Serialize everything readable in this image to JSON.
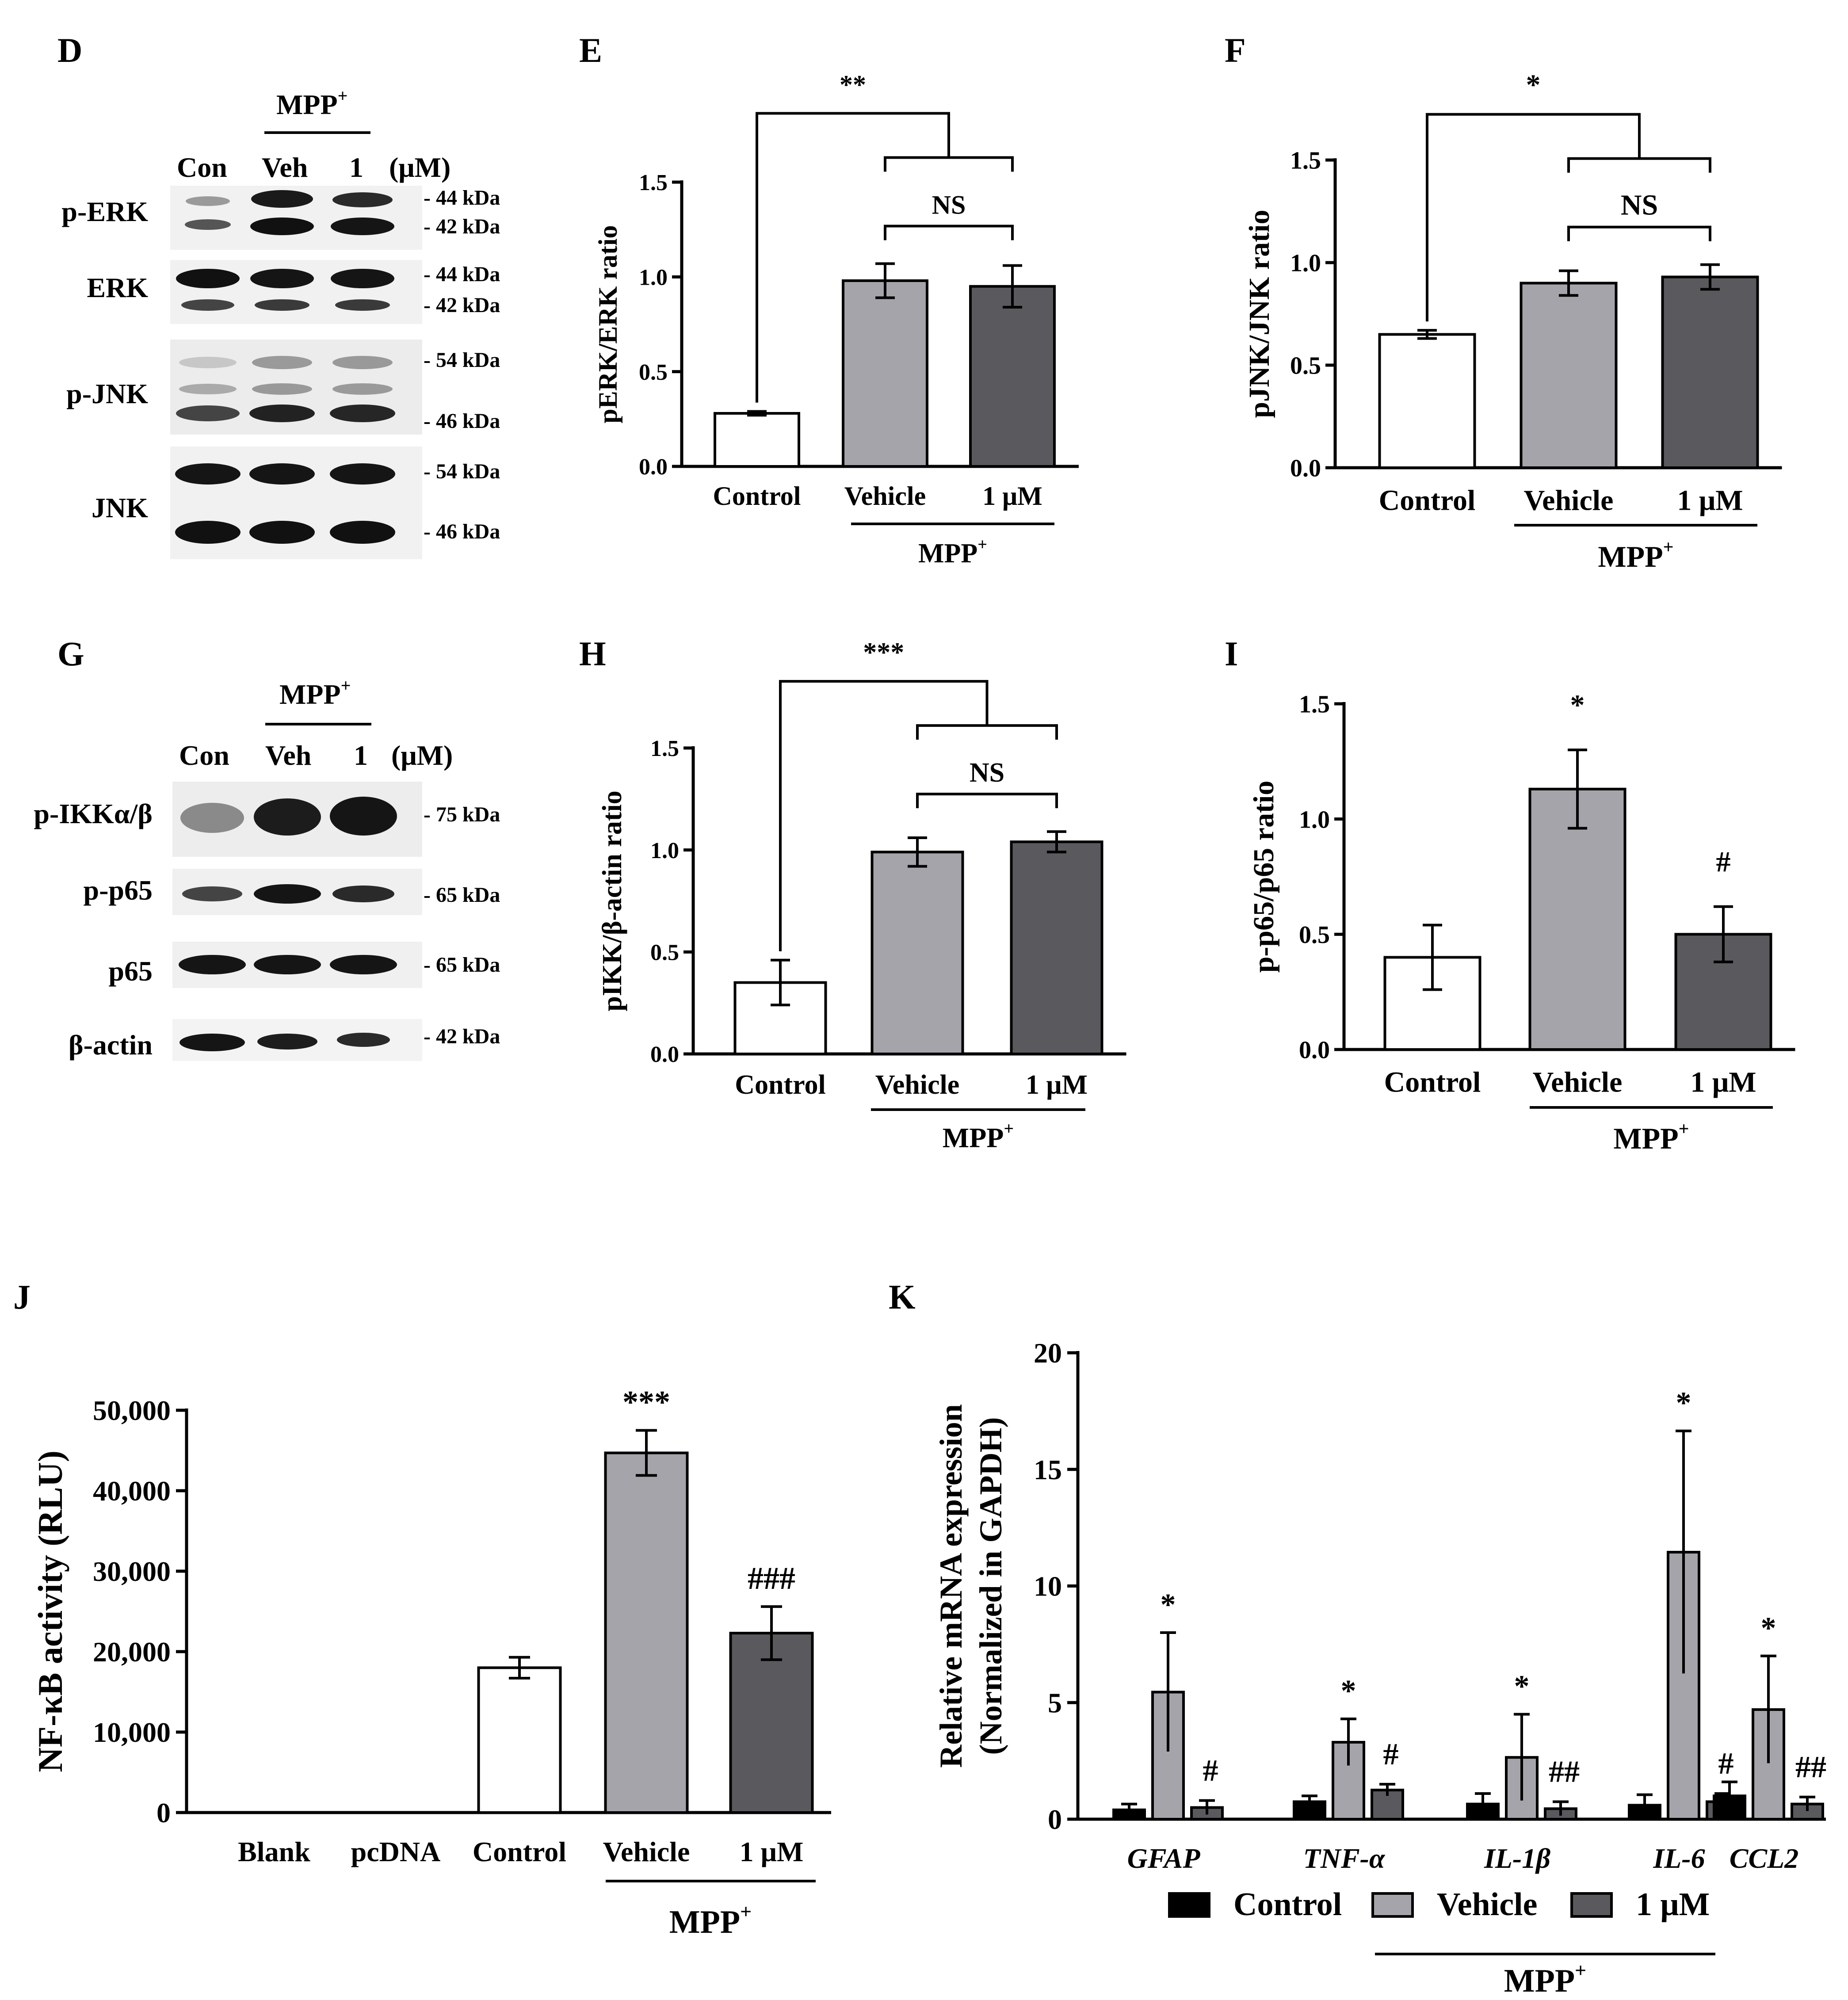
{
  "panel_letters": {
    "D": "D",
    "E": "E",
    "F": "F",
    "G": "G",
    "H": "H",
    "I": "I",
    "J": "J",
    "K": "K"
  },
  "colors": {
    "control": "#ffffff",
    "vehicle": "#a4a4aa",
    "dose": "#5a5a5e",
    "control_k": "#000000"
  },
  "blots": {
    "D": {
      "mpp_label": "MPP",
      "mpp_sup": "+",
      "lanes": [
        "Con",
        "Veh",
        "1",
        "(μM)"
      ],
      "rows": [
        {
          "label": "p-ERK",
          "kda": [
            "- 44 kDa",
            "- 42 kDa"
          ]
        },
        {
          "label": "ERK",
          "kda": [
            "- 44 kDa",
            "- 42 kDa"
          ]
        },
        {
          "label": "p-JNK",
          "kda": [
            "- 54 kDa",
            "- 46 kDa"
          ]
        },
        {
          "label": "JNK",
          "kda": [
            "- 54 kDa",
            "- 46 kDa"
          ]
        }
      ]
    },
    "G": {
      "mpp_label": "MPP",
      "mpp_sup": "+",
      "lanes": [
        "Con",
        "Veh",
        "1",
        "(μM)"
      ],
      "rows": [
        {
          "label": "p-IKKα/β",
          "kda": [
            "- 75 kDa"
          ]
        },
        {
          "label": "p-p65",
          "kda": [
            "- 65 kDa"
          ]
        },
        {
          "label": "p65",
          "kda": [
            "- 65 kDa"
          ]
        },
        {
          "label": "β-actin",
          "kda": [
            "- 42 kDa"
          ]
        }
      ]
    }
  },
  "chart_data": [
    {
      "panel": "E",
      "type": "bar",
      "categories": [
        "Control",
        "Vehicle",
        "1 μM"
      ],
      "values": [
        0.28,
        0.98,
        0.95
      ],
      "errors": [
        0.01,
        0.09,
        0.11
      ],
      "ylabel": "pERK/ERK ratio",
      "ylim": [
        0,
        1.5
      ],
      "yticks": [
        "0.0",
        "0.5",
        "1.0",
        "1.5"
      ],
      "group_label": "MPP",
      "group_sup": "+",
      "significance": [
        {
          "label": "**",
          "type": "outer"
        },
        {
          "label": "NS",
          "type": "inner"
        }
      ]
    },
    {
      "panel": "F",
      "type": "bar",
      "categories": [
        "Control",
        "Vehicle",
        "1 μM"
      ],
      "values": [
        0.65,
        0.9,
        0.93
      ],
      "errors": [
        0.02,
        0.06,
        0.06
      ],
      "ylabel": "pJNK/JNK ratio",
      "ylim": [
        0,
        1.5
      ],
      "yticks": [
        "0.0",
        "0.5",
        "1.0",
        "1.5"
      ],
      "group_label": "MPP",
      "group_sup": "+",
      "significance": [
        {
          "label": "*",
          "type": "outer"
        },
        {
          "label": "NS",
          "type": "inner"
        }
      ]
    },
    {
      "panel": "H",
      "type": "bar",
      "categories": [
        "Control",
        "Vehicle",
        "1 μM"
      ],
      "values": [
        0.35,
        0.99,
        1.04
      ],
      "errors": [
        0.11,
        0.07,
        0.05
      ],
      "ylabel": "pIKK/β-actin ratio",
      "ylim": [
        0,
        1.5
      ],
      "yticks": [
        "0.0",
        "0.5",
        "1.0",
        "1.5"
      ],
      "group_label": "MPP",
      "group_sup": "+",
      "significance": [
        {
          "label": "***",
          "type": "outer"
        },
        {
          "label": "NS",
          "type": "inner"
        }
      ]
    },
    {
      "panel": "I",
      "type": "bar",
      "categories": [
        "Control",
        "Vehicle",
        "1 μM"
      ],
      "values": [
        0.4,
        1.13,
        0.5
      ],
      "errors": [
        0.14,
        0.17,
        0.12
      ],
      "ylabel": "p-p65/p65 ratio",
      "ylim": [
        0,
        1.5
      ],
      "yticks": [
        "0.0",
        "0.5",
        "1.0",
        "1.5"
      ],
      "group_label": "MPP",
      "group_sup": "+",
      "marks": [
        "",
        "*",
        "#"
      ]
    },
    {
      "panel": "J",
      "type": "bar",
      "categories": [
        "Blank",
        "pcDNA",
        "Control",
        "Vehicle",
        "1 μM"
      ],
      "values": [
        0,
        0,
        18000,
        44700,
        22300
      ],
      "errors": [
        0,
        0,
        1300,
        2800,
        3300
      ],
      "ylabel": "NF-κB activity (RLU)",
      "ylim": [
        0,
        50000
      ],
      "yticks": [
        "0",
        "10,000",
        "20,000",
        "30,000",
        "40,000",
        "50,000"
      ],
      "group_label": "MPP",
      "group_sup": "+",
      "marks": [
        "",
        "",
        "",
        "***",
        "###"
      ]
    },
    {
      "panel": "K",
      "type": "bar",
      "categories": [
        "GFAP",
        "TNF-α",
        "IL-1β",
        "IL-6",
        "CCL2"
      ],
      "series": [
        {
          "name": "Control",
          "values": [
            0.4,
            0.75,
            0.65,
            0.6,
            1.0
          ],
          "errors": [
            0.25,
            0.25,
            0.45,
            0.45,
            0.6
          ]
        },
        {
          "name": "Vehicle",
          "values": [
            5.45,
            3.3,
            2.65,
            11.45,
            4.7
          ],
          "errors": [
            2.55,
            1.0,
            1.85,
            5.2,
            2.3
          ]
        },
        {
          "name": "1 μM",
          "values": [
            0.5,
            1.25,
            0.45,
            0.75,
            0.65
          ],
          "errors": [
            0.3,
            0.25,
            0.3,
            0.35,
            0.3
          ]
        }
      ],
      "marks": [
        [
          "*",
          "#"
        ],
        [
          "*",
          "#"
        ],
        [
          "*",
          "##"
        ],
        [
          "*",
          "#"
        ],
        [
          "*",
          "##"
        ]
      ],
      "ylabel_line1": "Relative mRNA expression",
      "ylabel_line2": "(Normalized in GAPDH)",
      "ylim": [
        0,
        20
      ],
      "yticks": [
        "0",
        "5",
        "10",
        "15",
        "20"
      ],
      "group_label": "MPP",
      "group_sup": "+",
      "legend": [
        "Control",
        "Vehicle",
        "1 μM"
      ]
    }
  ]
}
